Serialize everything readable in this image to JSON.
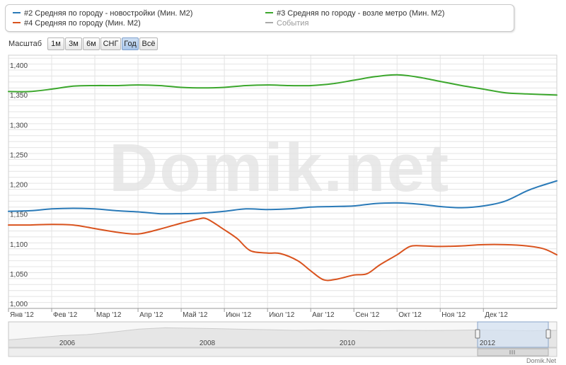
{
  "legend": {
    "items": [
      {
        "label": "#2 Средняя по городу - новостройки (Мин. М2)",
        "color": "#2a7ab8"
      },
      {
        "label": "#4 Средняя по городу (Мин. М2)",
        "color": "#d9531e"
      },
      {
        "label": "#3 Средняя по городу - возле метро (Мин. М2)",
        "color": "#3ca72d"
      },
      {
        "label": "События",
        "color": "#aaaaaa"
      }
    ]
  },
  "zoom": {
    "label": "Масштаб",
    "buttons": [
      "1м",
      "3м",
      "6м",
      "СНГ",
      "Год",
      "Всё"
    ],
    "active": "Год"
  },
  "watermark": "Domik.net",
  "navigator": {
    "years": [
      "2006",
      "2008",
      "2010",
      "2012"
    ],
    "handle_label": "2012"
  },
  "credit": "Domik.Net",
  "colors": {
    "series_blue": "#2a7ab8",
    "series_orange": "#d9531e",
    "series_green": "#3ca72d",
    "grid": "#e2e2e2",
    "navigator_fill": "#e6e6e6",
    "navigator_selection": "#d4e2f1"
  },
  "chart_data": {
    "type": "line",
    "ylim": [
      1000,
      1425
    ],
    "y_ticks": [
      1000,
      1050,
      1100,
      1150,
      1200,
      1250,
      1300,
      1350,
      1400
    ],
    "y_tick_labels": [
      "1,000",
      "1,050",
      "1,100",
      "1,150",
      "1,200",
      "1,250",
      "1,300",
      "1,350",
      "1,400"
    ],
    "x_domain": [
      0,
      12.7
    ],
    "x_ticks": [
      {
        "x": 0,
        "label": "Янв '12"
      },
      {
        "x": 1,
        "label": "Фев '12"
      },
      {
        "x": 2,
        "label": "Мар '12"
      },
      {
        "x": 3,
        "label": "Апр '12"
      },
      {
        "x": 4,
        "label": "Май '12"
      },
      {
        "x": 5,
        "label": "Июн '12"
      },
      {
        "x": 6,
        "label": "Июл '12"
      },
      {
        "x": 7,
        "label": "Авг '12"
      },
      {
        "x": 8,
        "label": "Сен '12"
      },
      {
        "x": 9,
        "label": "Окт '12"
      },
      {
        "x": 10,
        "label": "Ноя '12"
      },
      {
        "x": 11,
        "label": "Дек '12"
      }
    ],
    "series": [
      {
        "name": "#3 Средняя по городу - возле метро (Мин. М2)",
        "color": "#3ca72d",
        "x": [
          0,
          0.5,
          1,
          1.5,
          2,
          2.5,
          3,
          3.5,
          4,
          4.5,
          5,
          5.5,
          6,
          6.5,
          7,
          7.5,
          8,
          8.5,
          9,
          9.5,
          10,
          10.5,
          11,
          11.5,
          12,
          12.7
        ],
        "y": [
          1364,
          1364,
          1368,
          1373,
          1374,
          1374,
          1375,
          1374,
          1371,
          1370,
          1371,
          1374,
          1375,
          1374,
          1374,
          1377,
          1383,
          1389,
          1392,
          1388,
          1381,
          1374,
          1368,
          1362,
          1360,
          1358
        ]
      },
      {
        "name": "#2 Средняя по городу - новостройки (Мин. М2)",
        "color": "#2a7ab8",
        "x": [
          0,
          0.5,
          1,
          1.5,
          2,
          2.5,
          3,
          3.5,
          4,
          4.5,
          5,
          5.5,
          6,
          6.5,
          7,
          7.5,
          8,
          8.5,
          9,
          9.5,
          10,
          10.5,
          11,
          11.5,
          12,
          12.3,
          12.7
        ],
        "y": [
          1163,
          1164,
          1167,
          1168,
          1167,
          1164,
          1162,
          1159,
          1159,
          1160,
          1163,
          1167,
          1166,
          1167,
          1170,
          1171,
          1172,
          1176,
          1177,
          1175,
          1171,
          1169,
          1172,
          1180,
          1197,
          1205,
          1214
        ]
      },
      {
        "name": "#4 Средняя по городу (Мин. М2)",
        "color": "#d9531e",
        "x": [
          0,
          0.5,
          1,
          1.5,
          2,
          2.5,
          3,
          3.5,
          4,
          4.4,
          4.6,
          5,
          5.3,
          5.6,
          6,
          6.3,
          6.7,
          7,
          7.3,
          7.6,
          8,
          8.3,
          8.6,
          9,
          9.3,
          9.6,
          10,
          10.5,
          11,
          11.5,
          12,
          12.4,
          12.7
        ],
        "y": [
          1140,
          1140,
          1141,
          1140,
          1134,
          1128,
          1125,
          1133,
          1143,
          1150,
          1150,
          1132,
          1117,
          1097,
          1093,
          1092,
          1080,
          1063,
          1048,
          1049,
          1056,
          1058,
          1073,
          1090,
          1104,
          1105,
          1104,
          1105,
          1107,
          1107,
          1105,
          1100,
          1090
        ]
      }
    ]
  }
}
